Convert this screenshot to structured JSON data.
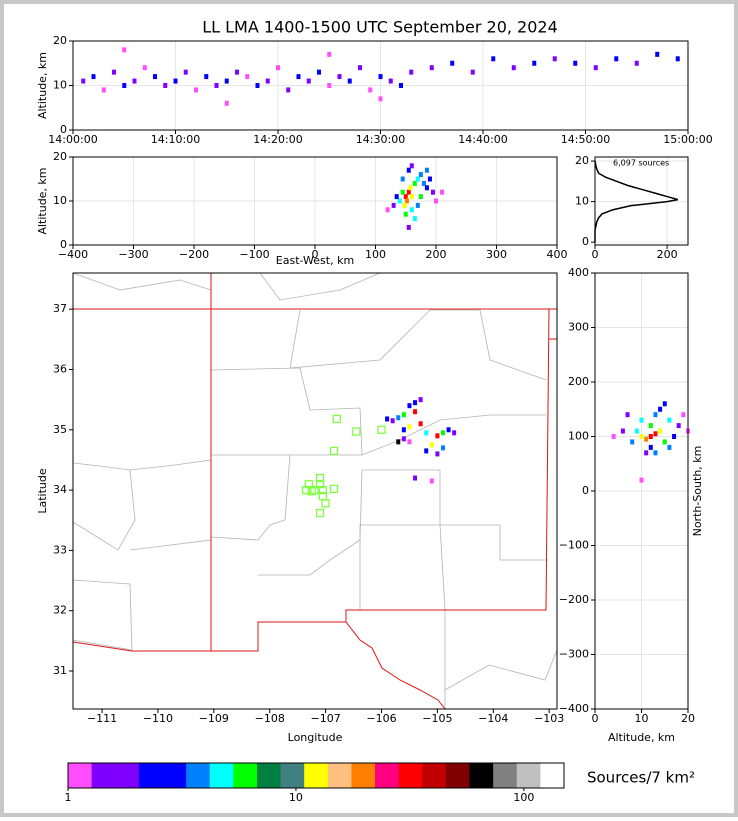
{
  "chart_data": [
    {
      "type": "scatter",
      "title": "LL LMA 1400-1500 UTC September 20, 2024",
      "y_label": "Altitude, km",
      "xlim": [
        0,
        60
      ],
      "xticks": [
        {
          "value": 0,
          "label": "14:00:00"
        },
        {
          "value": 10,
          "label": "14:10:00"
        },
        {
          "value": 20,
          "label": "14:20:00"
        },
        {
          "value": 30,
          "label": "14:30:00"
        },
        {
          "value": 40,
          "label": "14:40:00"
        },
        {
          "value": 50,
          "label": "14:50:00"
        },
        {
          "value": 60,
          "label": "15:00:00"
        }
      ],
      "ylim": [
        0,
        20
      ],
      "yticks": [
        0,
        10,
        20
      ],
      "grid": true,
      "x": [
        1,
        2,
        3,
        4,
        5,
        6,
        7,
        8,
        9,
        10,
        11,
        12,
        13,
        14,
        15,
        16,
        17,
        18,
        19,
        20,
        21,
        22,
        23,
        24,
        25,
        26,
        27,
        28,
        29,
        30,
        31,
        32,
        33,
        35,
        37,
        39,
        41,
        43,
        45,
        47,
        49,
        51,
        53,
        55,
        57,
        59,
        5,
        25,
        15,
        30
      ],
      "values": [
        11,
        12,
        9,
        13,
        10,
        11,
        14,
        12,
        10,
        11,
        13,
        9,
        12,
        10,
        11,
        13,
        12,
        10,
        11,
        14,
        9,
        12,
        11,
        13,
        10,
        12,
        11,
        14,
        9,
        12,
        11,
        10,
        13,
        14,
        15,
        13,
        16,
        14,
        15,
        16,
        15,
        14,
        16,
        15,
        17,
        16,
        18,
        17,
        6,
        7
      ],
      "point_colors": [
        "#8000ff",
        "#0000ff",
        "#ff4dff",
        "#8000ff",
        "#0000ff",
        "#8000ff",
        "#ff4dff",
        "#0000ff",
        "#8000ff",
        "#0000ff",
        "#8000ff",
        "#ff4dff",
        "#0000ff",
        "#8000ff",
        "#0000ff",
        "#8000ff",
        "#ff4dff",
        "#0000ff",
        "#8000ff",
        "#ff4dff",
        "#8000ff",
        "#0000ff",
        "#8000ff",
        "#0000ff",
        "#ff4dff",
        "#8000ff",
        "#0000ff",
        "#8000ff",
        "#ff4dff",
        "#0000ff",
        "#8000ff",
        "#0000ff",
        "#8000ff",
        "#8000ff",
        "#0000ff",
        "#8000ff",
        "#0000ff",
        "#8000ff",
        "#0000ff",
        "#8000ff",
        "#0000ff",
        "#8000ff",
        "#0000ff",
        "#8000ff",
        "#0000ff",
        "#0000ff",
        "#ff4dff",
        "#ff4dff",
        "#ff4dff",
        "#ff4dff"
      ]
    },
    {
      "type": "scatter",
      "x_label": "East-West, km",
      "y_label": "Altitude, km",
      "xlim": [
        -400,
        400
      ],
      "xticks": [
        {
          "value": -400,
          "label": "−400"
        },
        {
          "value": -300,
          "label": "−300"
        },
        {
          "value": -200,
          "label": "−200"
        },
        {
          "value": -100,
          "label": "−100"
        },
        0,
        100,
        200,
        300,
        400
      ],
      "ylim": [
        0,
        20
      ],
      "yticks": [
        0,
        10,
        20
      ],
      "grid": true,
      "x": [
        150,
        155,
        152,
        158,
        148,
        160,
        145,
        165,
        150,
        170,
        140,
        175,
        180,
        185,
        190,
        195,
        155,
        160,
        130,
        120,
        200,
        210,
        165,
        155,
        175,
        185,
        145,
        135,
        170,
        160
      ],
      "values": [
        11,
        12,
        10,
        13,
        9,
        11,
        12,
        14,
        7,
        15,
        10,
        16,
        14,
        13,
        15,
        12,
        17,
        18,
        9,
        8,
        10,
        12,
        6,
        4,
        11,
        17,
        15,
        11,
        9,
        8
      ],
      "point_colors": [
        "#ff0000",
        "#ff0000",
        "#ff8000",
        "#ffff00",
        "#ffff00",
        "#ffff00",
        "#00ff00",
        "#00ff00",
        "#00ff00",
        "#00ffff",
        "#00ffff",
        "#0080ff",
        "#0080ff",
        "#0000ff",
        "#0000ff",
        "#8000ff",
        "#0000ff",
        "#8000ff",
        "#8000ff",
        "#ff4dff",
        "#ff4dff",
        "#ff4dff",
        "#00ffff",
        "#8000ff",
        "#00ff00",
        "#0080ff",
        "#0080ff",
        "#0000ff",
        "#0080ff",
        "#00ffff"
      ]
    },
    {
      "type": "line",
      "annotation": "6,097 sources",
      "color": "#000000",
      "xlim": [
        0,
        258
      ],
      "xticks": [
        0,
        200
      ],
      "ylim": [
        -0.7,
        21
      ],
      "yticks": [
        0,
        10,
        20
      ],
      "grid": true,
      "x": [
        0,
        0,
        5,
        10,
        20,
        50,
        100,
        200,
        230,
        210,
        170,
        130,
        90,
        60,
        30,
        10,
        5,
        2,
        0
      ],
      "values": [
        0,
        3,
        5,
        6,
        7,
        8,
        9,
        10,
        10.5,
        11,
        12,
        13,
        14,
        15,
        16,
        17,
        18,
        19,
        20
      ]
    },
    {
      "type": "scatter",
      "x_label": "Longitude",
      "y_label": "Latitude",
      "xlim": [
        -111.52,
        -102.86
      ],
      "xticks": [
        {
          "value": -111,
          "label": "−111"
        },
        {
          "value": -110,
          "label": "−110"
        },
        {
          "value": -109,
          "label": "−109"
        },
        {
          "value": -108,
          "label": "−108"
        },
        {
          "value": -107,
          "label": "−107"
        },
        {
          "value": -106,
          "label": "−106"
        },
        {
          "value": -105,
          "label": "−105"
        },
        {
          "value": -104,
          "label": "−104"
        },
        {
          "value": -103,
          "label": "−103"
        }
      ],
      "ylim": [
        30.37,
        37.6
      ],
      "yticks": [
        31,
        32,
        33,
        34,
        35,
        36,
        37
      ],
      "grid": false,
      "x": [
        -105.5,
        -105.4,
        -105.6,
        -105.3,
        -105.5,
        -105.7,
        -105.8,
        -105.4,
        -105.6,
        -105.2,
        -105.0,
        -104.9,
        -104.8,
        -105.1,
        -105.2,
        -105.0,
        -104.7,
        -105.6,
        -105.7,
        -105.5,
        -105.3,
        -105.4,
        -105.1,
        -104.9,
        -105.9
      ],
      "values": [
        35.4,
        35.3,
        35.25,
        35.1,
        35.05,
        35.2,
        35.15,
        35.45,
        35.0,
        34.95,
        34.9,
        34.95,
        35.0,
        34.75,
        34.65,
        34.6,
        34.95,
        34.85,
        34.8,
        34.8,
        35.5,
        34.2,
        34.15,
        34.7,
        35.18
      ],
      "point_colors": [
        "#0000ff",
        "#ff0000",
        "#00ff00",
        "#ff0000",
        "#ffff00",
        "#0080ff",
        "#8000ff",
        "#0000ff",
        "#0000ff",
        "#00ffff",
        "#ff0000",
        "#00ff00",
        "#0000ff",
        "#ffff00",
        "#0000ff",
        "#8000ff",
        "#8000ff",
        "#8000ff",
        "#000000",
        "#ff4dff",
        "#8000ff",
        "#8000ff",
        "#ff4dff",
        "#0080ff",
        "#0000ff"
      ],
      "stations": {
        "color": "#80ff40",
        "x": [
          -106.8,
          -106.45,
          -106.0,
          -106.85,
          -107.1,
          -107.3,
          -107.35,
          -107.2,
          -107.05,
          -106.85,
          -107.1,
          -107.05,
          -107.0,
          -107.1,
          -107.25
        ],
        "values": [
          35.18,
          34.97,
          35.0,
          34.65,
          34.2,
          34.1,
          34.0,
          34.0,
          34.0,
          34.02,
          34.1,
          33.9,
          33.78,
          33.62,
          33.98
        ]
      }
    },
    {
      "type": "scatter",
      "x_label": "Altitude, km",
      "y_label": "North-South, km",
      "y_label_side": "right",
      "xlim": [
        0,
        20
      ],
      "xticks": [
        0,
        10,
        20
      ],
      "ylim": [
        -400,
        400
      ],
      "yticks": [
        {
          "value": -400,
          "label": "−400"
        },
        {
          "value": -300,
          "label": "−300"
        },
        {
          "value": -200,
          "label": "−200"
        },
        {
          "value": -100,
          "label": "−100"
        },
        0,
        100,
        200,
        300,
        400
      ],
      "grid": true,
      "x": [
        12,
        13,
        11,
        14,
        10,
        12,
        15,
        9,
        16,
        13,
        8,
        17,
        12,
        14,
        11,
        6,
        18,
        4,
        19,
        15,
        10,
        13,
        16,
        10,
        7,
        20
      ],
      "values": [
        100,
        105,
        95,
        110,
        100,
        120,
        90,
        110,
        130,
        140,
        90,
        100,
        80,
        150,
        70,
        110,
        120,
        100,
        140,
        160,
        130,
        70,
        80,
        20,
        140,
        110
      ],
      "point_colors": [
        "#ff0000",
        "#ff0000",
        "#ff8000",
        "#ffff00",
        "#ffff00",
        "#00ff00",
        "#00ff00",
        "#00ffff",
        "#00ffff",
        "#0080ff",
        "#0080ff",
        "#0000ff",
        "#0000ff",
        "#0000ff",
        "#8000ff",
        "#8000ff",
        "#8000ff",
        "#ff4dff",
        "#ff4dff",
        "#0000ff",
        "#00ffff",
        "#0080ff",
        "#0080ff",
        "#ff4dff",
        "#8000ff",
        "#ff4dff"
      ]
    },
    {
      "type": "colorbar",
      "label": "Sources/7 km²",
      "log_scale": true,
      "xlim": [
        1,
        150
      ],
      "xticks": [
        1,
        10,
        100
      ],
      "colors": [
        "#ff4dff",
        "#8000ff",
        "#8000ff",
        "#0000ff",
        "#0000ff",
        "#0080ff",
        "#00ffff",
        "#00ff00",
        "#008040",
        "#408080",
        "#ffff00",
        "#ffc080",
        "#ff8000",
        "#ff0080",
        "#ff0000",
        "#c00000",
        "#800000",
        "#000000",
        "#808080",
        "#c0c0c0",
        "#ffffff"
      ]
    }
  ]
}
